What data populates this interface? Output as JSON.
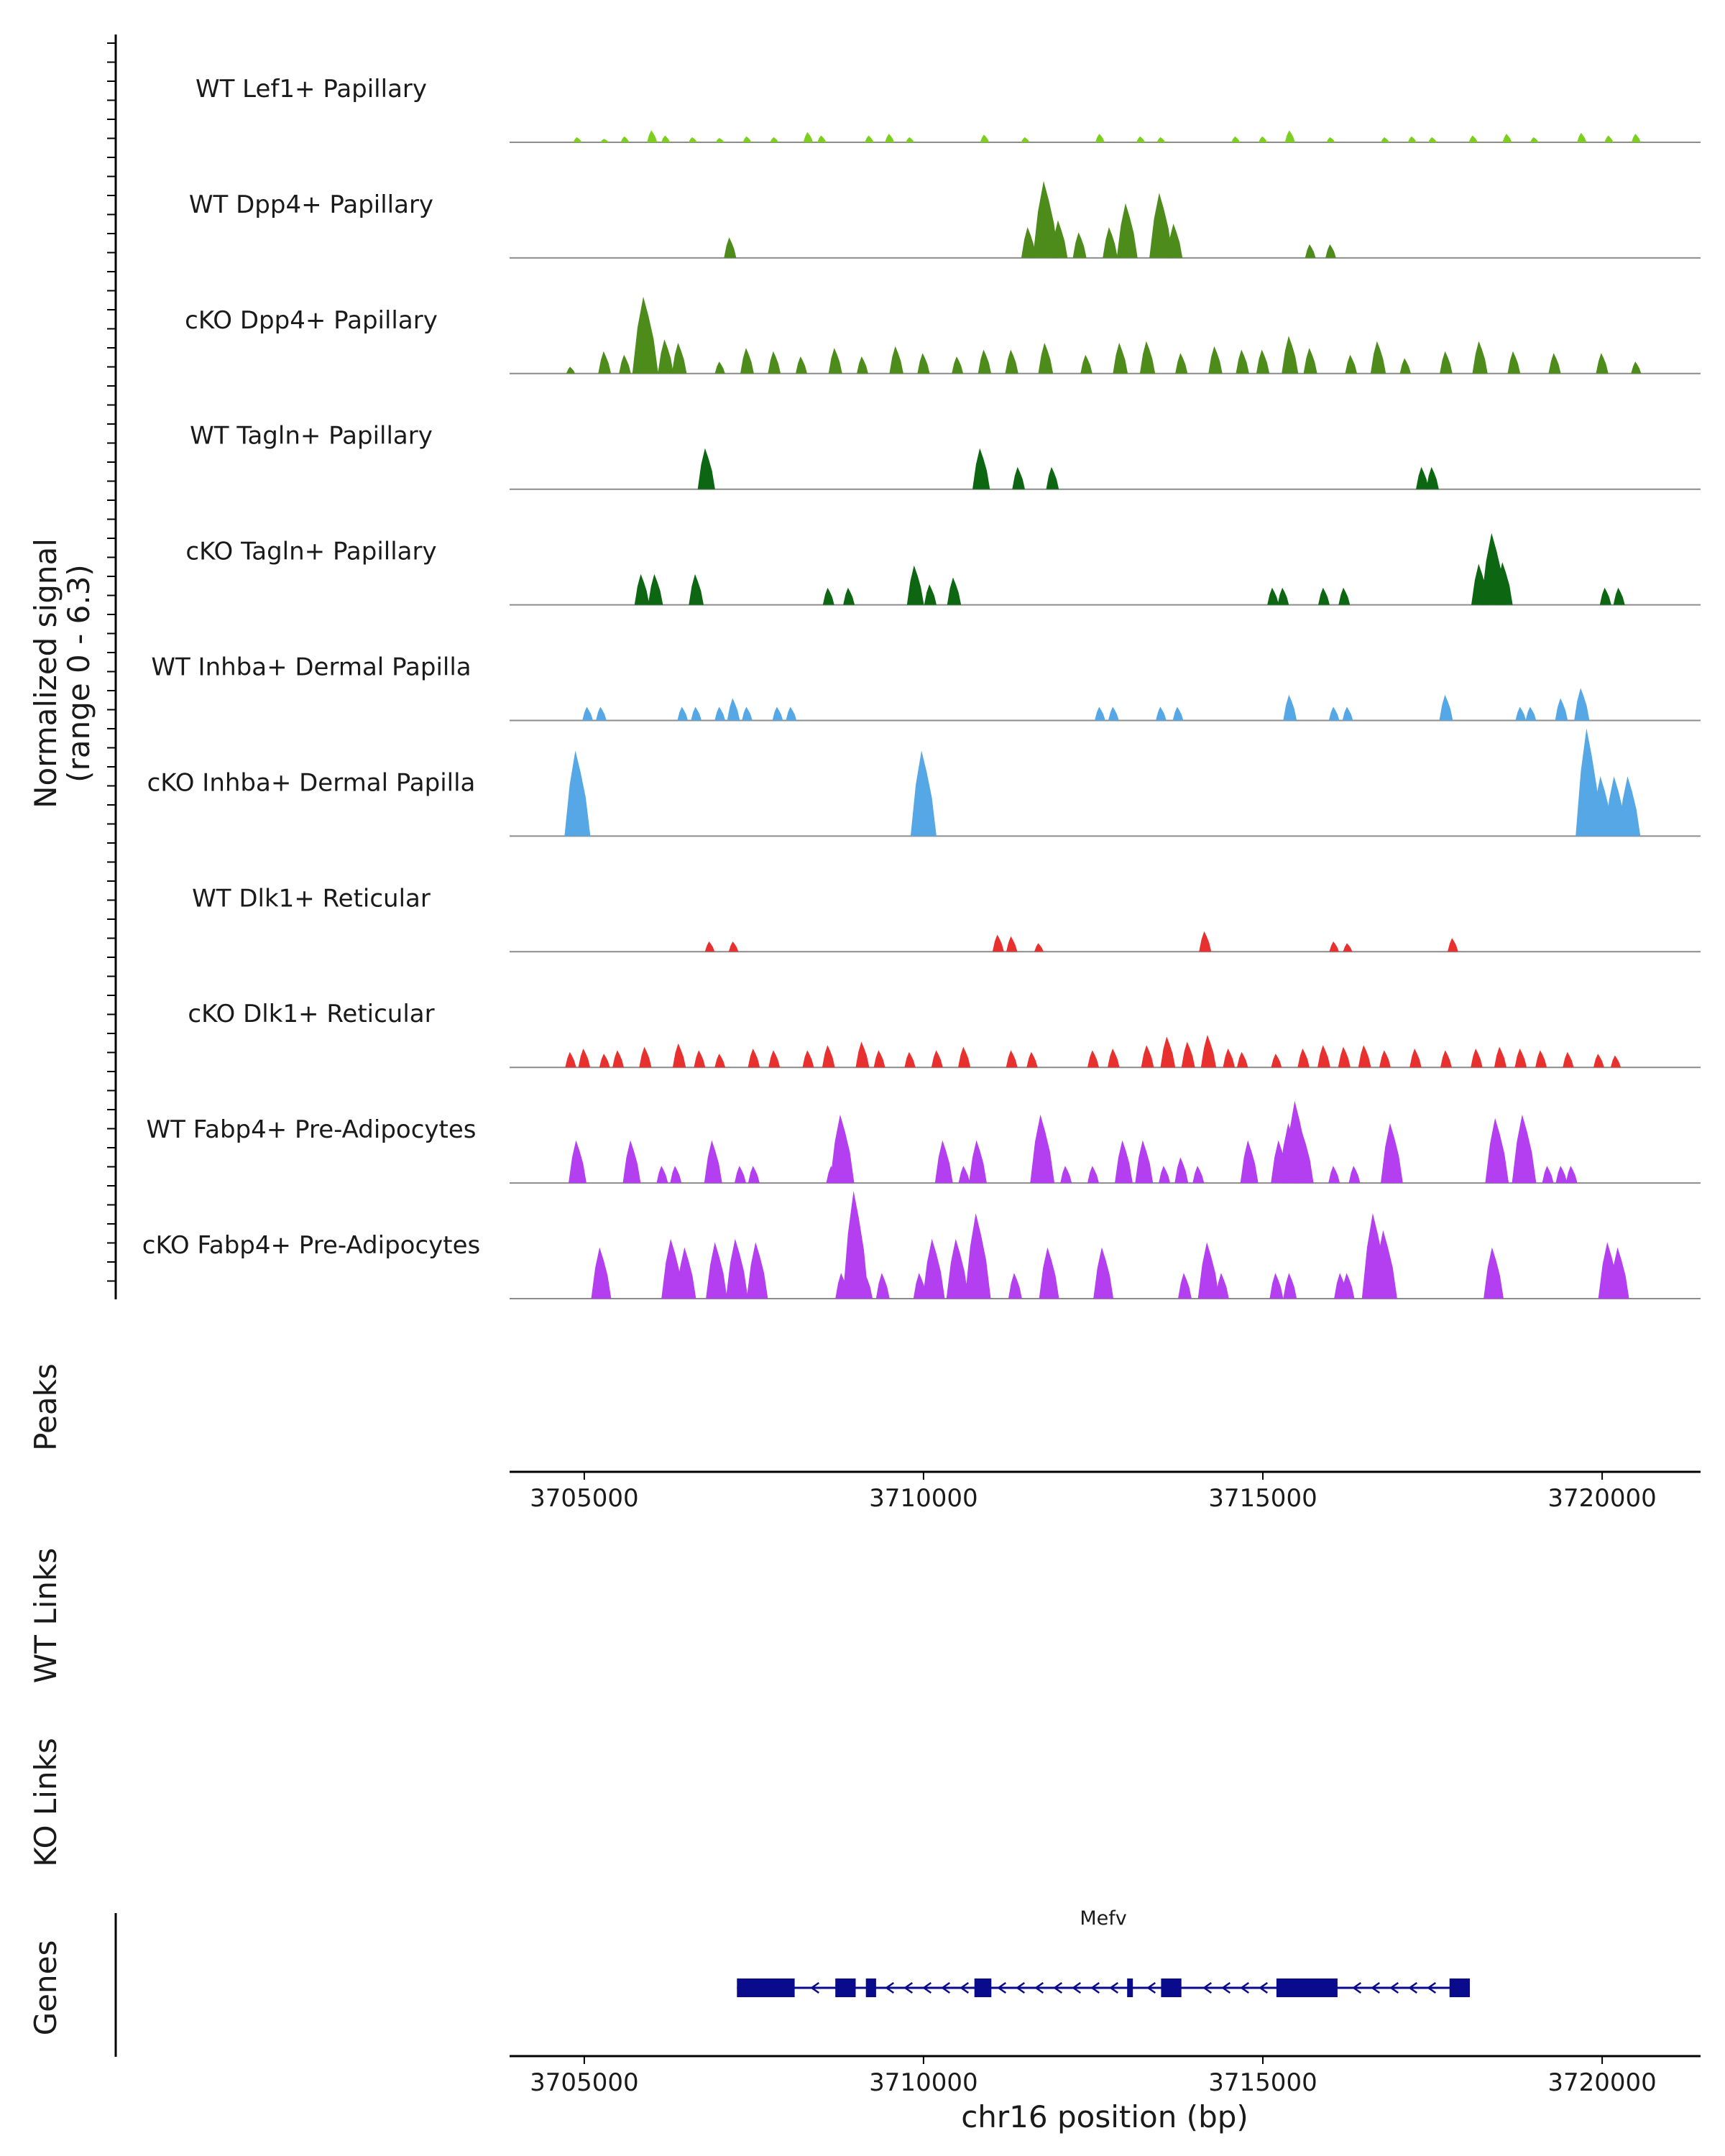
{
  "chart_data": {
    "type": "area",
    "title": "",
    "ylabel_line1": "Normalized signal",
    "ylabel_line2": "(range 0 - 6.3)",
    "y_range": [
      0,
      6.3
    ],
    "x_range": [
      3703900,
      3721450
    ],
    "xlabel": "chr16 position (bp)",
    "x_ticks": [
      3705000,
      3710000,
      3715000,
      3720000
    ],
    "x_tick_labels": [
      "3705000",
      "3710000",
      "3715000",
      "3720000"
    ],
    "tracks": [
      {
        "name": "WT Lef1+ Papillary",
        "color": "#7cce1f",
        "peaks": [
          [
            3704900,
            0.3
          ],
          [
            3705300,
            0.2
          ],
          [
            3705600,
            0.35
          ],
          [
            3706000,
            0.7
          ],
          [
            3706200,
            0.4
          ],
          [
            3706600,
            0.3
          ],
          [
            3707000,
            0.25
          ],
          [
            3707400,
            0.35
          ],
          [
            3707800,
            0.3
          ],
          [
            3708300,
            0.6
          ],
          [
            3708500,
            0.4
          ],
          [
            3709200,
            0.4
          ],
          [
            3709500,
            0.5
          ],
          [
            3709800,
            0.3
          ],
          [
            3710900,
            0.45
          ],
          [
            3711500,
            0.3
          ],
          [
            3712600,
            0.5
          ],
          [
            3713200,
            0.35
          ],
          [
            3713500,
            0.3
          ],
          [
            3714600,
            0.35
          ],
          [
            3715000,
            0.35
          ],
          [
            3715400,
            0.7
          ],
          [
            3716000,
            0.3
          ],
          [
            3716800,
            0.3
          ],
          [
            3717200,
            0.35
          ],
          [
            3717500,
            0.3
          ],
          [
            3718100,
            0.4
          ],
          [
            3718600,
            0.5
          ],
          [
            3719000,
            0.3
          ],
          [
            3719700,
            0.55
          ],
          [
            3720100,
            0.4
          ],
          [
            3720500,
            0.5
          ]
        ]
      },
      {
        "name": "WT Dpp4+ Papillary",
        "color": "#4d8c1a",
        "peaks": [
          [
            3707150,
            1.2
          ],
          [
            3711550,
            1.8
          ],
          [
            3711800,
            4.5
          ],
          [
            3712000,
            2.2
          ],
          [
            3712300,
            1.5
          ],
          [
            3712750,
            1.8
          ],
          [
            3713000,
            3.2
          ],
          [
            3713500,
            3.8
          ],
          [
            3713700,
            2.0
          ],
          [
            3715700,
            0.8
          ],
          [
            3716000,
            0.8
          ]
        ]
      },
      {
        "name": "cKO Dpp4+ Papillary",
        "color": "#4d8c1a",
        "peaks": [
          [
            3704800,
            0.4
          ],
          [
            3705300,
            1.3
          ],
          [
            3705600,
            1.1
          ],
          [
            3705900,
            4.5
          ],
          [
            3706200,
            2.0
          ],
          [
            3706400,
            1.8
          ],
          [
            3707000,
            0.7
          ],
          [
            3707400,
            1.5
          ],
          [
            3707800,
            1.3
          ],
          [
            3708200,
            1.0
          ],
          [
            3708700,
            1.5
          ],
          [
            3709100,
            1.0
          ],
          [
            3709600,
            1.6
          ],
          [
            3710000,
            1.2
          ],
          [
            3710500,
            1.0
          ],
          [
            3710900,
            1.4
          ],
          [
            3711300,
            1.4
          ],
          [
            3711800,
            1.8
          ],
          [
            3712400,
            1.1
          ],
          [
            3712900,
            1.8
          ],
          [
            3713300,
            1.9
          ],
          [
            3713800,
            1.2
          ],
          [
            3714300,
            1.6
          ],
          [
            3714700,
            1.4
          ],
          [
            3715000,
            1.4
          ],
          [
            3715400,
            2.2
          ],
          [
            3715700,
            1.5
          ],
          [
            3716300,
            1.1
          ],
          [
            3716700,
            1.9
          ],
          [
            3717100,
            0.9
          ],
          [
            3717700,
            1.3
          ],
          [
            3718200,
            1.9
          ],
          [
            3718700,
            1.3
          ],
          [
            3719300,
            1.2
          ],
          [
            3720000,
            1.2
          ],
          [
            3720500,
            0.7
          ]
        ]
      },
      {
        "name": "WT Tagln+ Papillary",
        "color": "#0d6611",
        "peaks": [
          [
            3706800,
            2.4
          ],
          [
            3710850,
            2.4
          ],
          [
            3711400,
            1.3
          ],
          [
            3711900,
            1.3
          ],
          [
            3717350,
            1.3
          ],
          [
            3717500,
            1.3
          ]
        ]
      },
      {
        "name": "cKO Tagln+ Papillary",
        "color": "#0d6611",
        "peaks": [
          [
            3705850,
            1.8
          ],
          [
            3706050,
            1.8
          ],
          [
            3706650,
            1.8
          ],
          [
            3708600,
            1.0
          ],
          [
            3708900,
            1.0
          ],
          [
            3709880,
            2.3
          ],
          [
            3710100,
            1.2
          ],
          [
            3710450,
            1.6
          ],
          [
            3715150,
            1.0
          ],
          [
            3715300,
            1.0
          ],
          [
            3715900,
            1.0
          ],
          [
            3716200,
            1.0
          ],
          [
            3718200,
            2.4
          ],
          [
            3718400,
            4.2
          ],
          [
            3718550,
            2.5
          ],
          [
            3720050,
            1.0
          ],
          [
            3720250,
            1.0
          ]
        ]
      },
      {
        "name": "WT Inhba+ Dermal Papilla",
        "color": "#56a7e6",
        "peaks": [
          [
            3705050,
            0.8
          ],
          [
            3705250,
            0.8
          ],
          [
            3706450,
            0.8
          ],
          [
            3706650,
            0.8
          ],
          [
            3707000,
            0.8
          ],
          [
            3707200,
            1.3
          ],
          [
            3707400,
            0.8
          ],
          [
            3707850,
            0.8
          ],
          [
            3708050,
            0.8
          ],
          [
            3712600,
            0.8
          ],
          [
            3712800,
            0.8
          ],
          [
            3713500,
            0.8
          ],
          [
            3713750,
            0.8
          ],
          [
            3715400,
            1.5
          ],
          [
            3716050,
            0.8
          ],
          [
            3716250,
            0.8
          ],
          [
            3717700,
            1.5
          ],
          [
            3718800,
            0.8
          ],
          [
            3718950,
            0.8
          ],
          [
            3719400,
            1.3
          ],
          [
            3719700,
            1.9
          ]
        ]
      },
      {
        "name": "cKO Inhba+ Dermal Papilla",
        "color": "#56a7e6",
        "peaks": [
          [
            3704900,
            5.0
          ],
          [
            3710000,
            5.0
          ],
          [
            3719800,
            6.3
          ],
          [
            3720000,
            3.5
          ],
          [
            3720200,
            3.5
          ],
          [
            3720400,
            3.5
          ]
        ]
      },
      {
        "name": "WT Dlk1+ Reticular",
        "color": "#e8302f",
        "peaks": [
          [
            3706850,
            0.6
          ],
          [
            3707200,
            0.6
          ],
          [
            3711100,
            1.0
          ],
          [
            3711300,
            0.9
          ],
          [
            3711700,
            0.5
          ],
          [
            3714150,
            1.2
          ],
          [
            3716050,
            0.6
          ],
          [
            3716250,
            0.5
          ],
          [
            3717800,
            0.8
          ]
        ]
      },
      {
        "name": "cKO Dlk1+ Reticular",
        "color": "#e8302f",
        "peaks": [
          [
            3704800,
            0.9
          ],
          [
            3705000,
            1.1
          ],
          [
            3705300,
            0.8
          ],
          [
            3705500,
            1.0
          ],
          [
            3705900,
            1.2
          ],
          [
            3706400,
            1.4
          ],
          [
            3706700,
            1.0
          ],
          [
            3707000,
            0.8
          ],
          [
            3707500,
            1.1
          ],
          [
            3707800,
            1.0
          ],
          [
            3708300,
            1.0
          ],
          [
            3708600,
            1.3
          ],
          [
            3709100,
            1.5
          ],
          [
            3709350,
            1.0
          ],
          [
            3709800,
            0.9
          ],
          [
            3710200,
            1.0
          ],
          [
            3710600,
            1.2
          ],
          [
            3711300,
            1.0
          ],
          [
            3711600,
            0.9
          ],
          [
            3712500,
            1.0
          ],
          [
            3712800,
            1.1
          ],
          [
            3713300,
            1.3
          ],
          [
            3713600,
            1.8
          ],
          [
            3713900,
            1.5
          ],
          [
            3714200,
            1.9
          ],
          [
            3714500,
            1.1
          ],
          [
            3714700,
            0.9
          ],
          [
            3715200,
            0.8
          ],
          [
            3715600,
            1.1
          ],
          [
            3715900,
            1.3
          ],
          [
            3716200,
            1.2
          ],
          [
            3716500,
            1.3
          ],
          [
            3716800,
            1.0
          ],
          [
            3717250,
            1.1
          ],
          [
            3717700,
            1.0
          ],
          [
            3718150,
            1.1
          ],
          [
            3718500,
            1.2
          ],
          [
            3718800,
            1.1
          ],
          [
            3719100,
            1.0
          ],
          [
            3719500,
            0.9
          ],
          [
            3719950,
            0.8
          ],
          [
            3720200,
            0.7
          ]
        ]
      },
      {
        "name": "WT Fabp4+ Pre-Adipocytes",
        "color": "#b33ff0",
        "peaks": [
          [
            3704900,
            2.5
          ],
          [
            3705700,
            2.5
          ],
          [
            3706150,
            1.0
          ],
          [
            3706350,
            1.0
          ],
          [
            3706900,
            2.5
          ],
          [
            3707300,
            1.0
          ],
          [
            3707500,
            1.0
          ],
          [
            3708650,
            1.0
          ],
          [
            3708800,
            4.0
          ],
          [
            3710300,
            2.5
          ],
          [
            3710600,
            1.0
          ],
          [
            3710800,
            2.5
          ],
          [
            3711750,
            4.0
          ],
          [
            3712100,
            1.0
          ],
          [
            3712500,
            1.0
          ],
          [
            3712950,
            2.5
          ],
          [
            3713250,
            2.5
          ],
          [
            3713550,
            1.0
          ],
          [
            3713800,
            1.5
          ],
          [
            3714050,
            1.0
          ],
          [
            3714800,
            2.5
          ],
          [
            3715250,
            2.5
          ],
          [
            3715400,
            3.5
          ],
          [
            3715500,
            4.8
          ],
          [
            3715600,
            3.0
          ],
          [
            3716050,
            1.0
          ],
          [
            3716350,
            1.0
          ],
          [
            3716900,
            3.5
          ],
          [
            3718450,
            3.8
          ],
          [
            3718850,
            4.0
          ],
          [
            3719200,
            1.0
          ],
          [
            3719400,
            1.0
          ],
          [
            3719550,
            1.0
          ]
        ]
      },
      {
        "name": "cKO Fabp4+ Pre-Adipocytes",
        "color": "#b33ff0",
        "peaks": [
          [
            3705250,
            3.0
          ],
          [
            3706300,
            3.5
          ],
          [
            3706500,
            3.0
          ],
          [
            3706950,
            3.3
          ],
          [
            3707250,
            3.5
          ],
          [
            3707550,
            3.3
          ],
          [
            3708800,
            1.5
          ],
          [
            3709000,
            6.3
          ],
          [
            3709150,
            1.5
          ],
          [
            3709400,
            1.5
          ],
          [
            3709950,
            1.5
          ],
          [
            3710150,
            3.5
          ],
          [
            3710500,
            3.5
          ],
          [
            3710800,
            5.0
          ],
          [
            3711350,
            1.5
          ],
          [
            3711850,
            3.0
          ],
          [
            3712650,
            3.0
          ],
          [
            3713850,
            1.5
          ],
          [
            3714200,
            3.3
          ],
          [
            3714400,
            1.5
          ],
          [
            3715200,
            1.5
          ],
          [
            3715400,
            1.5
          ],
          [
            3716150,
            1.5
          ],
          [
            3716250,
            1.5
          ],
          [
            3716650,
            5.0
          ],
          [
            3716800,
            4.0
          ],
          [
            3718400,
            3.0
          ],
          [
            3720100,
            3.3
          ],
          [
            3720250,
            3.0
          ]
        ]
      }
    ],
    "panel_labels": [
      "Peaks",
      "WT Links",
      "KO Links",
      "Genes"
    ],
    "gene": {
      "name": "Mefv",
      "color": "#0a0a8c",
      "start": 3707250,
      "end": 3718050,
      "strand": "-",
      "exons": [
        [
          3707250,
          3708100
        ],
        [
          3708700,
          3709000
        ],
        [
          3709150,
          3709300
        ],
        [
          3710750,
          3711000
        ],
        [
          3713000,
          3713050
        ],
        [
          3713500,
          3713800
        ],
        [
          3715200,
          3716100
        ],
        [
          3717750,
          3718050
        ]
      ]
    }
  }
}
